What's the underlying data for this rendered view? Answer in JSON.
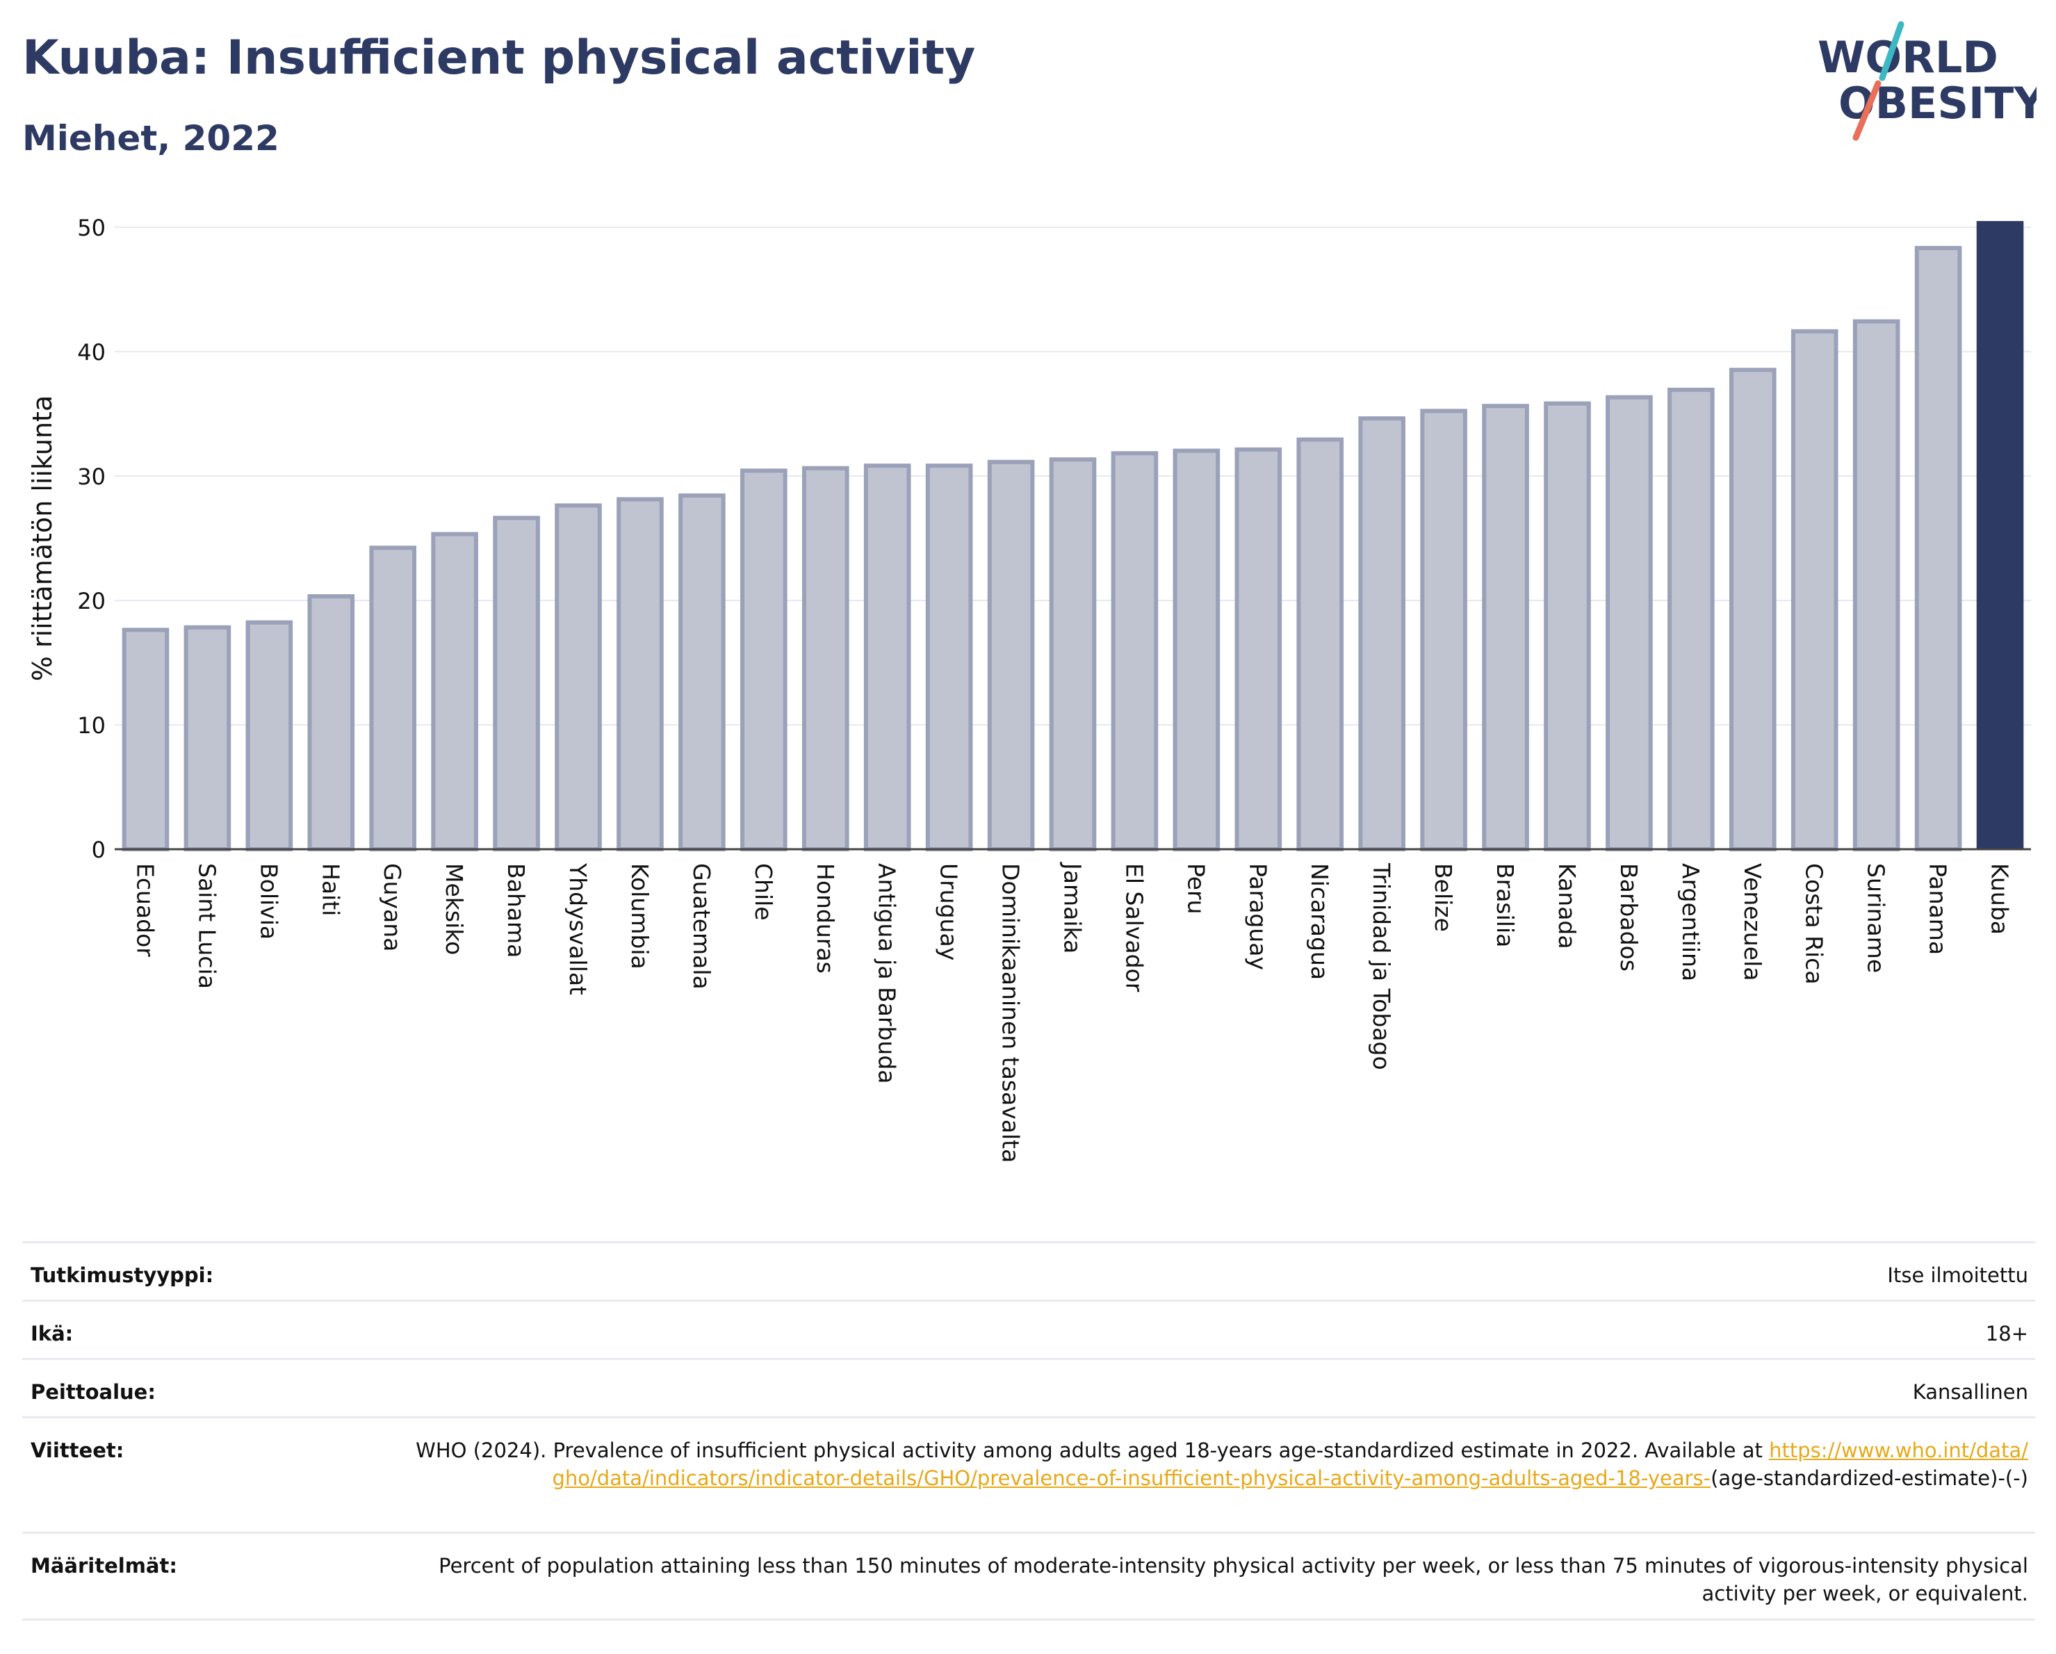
{
  "header": {
    "title": "Kuuba: Insufficient physical activity",
    "subtitle": "Miehet, 2022"
  },
  "logo": {
    "line1": "WORLD",
    "line2": "OBESITY",
    "colors": {
      "text": "#2d3a63",
      "slash_teal": "#3bb8c2",
      "slash_coral": "#e8705a"
    }
  },
  "chart_data": {
    "type": "bar",
    "title": "Kuuba: Insufficient physical activity",
    "subtitle": "Miehet, 2022",
    "xlabel": "",
    "ylabel": "% riittämätön liikunta",
    "ylim": [
      0,
      50
    ],
    "yticks": [
      0,
      10,
      20,
      30,
      40,
      50
    ],
    "grid": true,
    "categories": [
      "Ecuador",
      "Saint Lucia",
      "Bolivia",
      "Haiti",
      "Guyana",
      "Meksiko",
      "Bahama",
      "Yhdysvallat",
      "Kolumbia",
      "Guatemala",
      "Chile",
      "Honduras",
      "Antigua ja Barbuda",
      "Uruguay",
      "Dominikaaninen tasavalta",
      "Jamaika",
      "El Salvador",
      "Peru",
      "Paraguay",
      "Nicaragua",
      "Trinidad ja Tobago",
      "Belize",
      "Brasilia",
      "Kanada",
      "Barbados",
      "Argentiina",
      "Venezuela",
      "Costa Rica",
      "Suriname",
      "Panama",
      "Kuuba"
    ],
    "values": [
      17.8,
      18.0,
      18.4,
      20.5,
      24.4,
      25.5,
      26.8,
      27.8,
      28.3,
      28.6,
      30.6,
      30.8,
      31.0,
      31.0,
      31.3,
      31.5,
      32.0,
      32.2,
      32.3,
      33.1,
      34.8,
      35.4,
      35.8,
      36.0,
      36.5,
      37.1,
      38.7,
      41.8,
      42.6,
      48.5,
      50.5
    ],
    "highlight": "Kuuba",
    "colors": {
      "bar": "#c0c4d1",
      "bar_border": "#9aa1b8",
      "highlight": "#2d3a63",
      "grid": "#e6e9f1"
    }
  },
  "meta": [
    {
      "label": "Tutkimustyyppi:",
      "value": "Itse ilmoitettu"
    },
    {
      "label": "Ikä:",
      "value": "18+"
    },
    {
      "label": "Peittoalue:",
      "value": "Kansallinen"
    },
    {
      "label": "Viitteet:",
      "value": "WHO (2024). Prevalence of insufficient physical activity among adults aged 18-years age-standardized estimate in 2022. Available at",
      "link": "https://www.who.int/data/gho/data/indicators/indicator-details/GHO/prevalence-of-insufficient-physical-activity-among-adults-aged-18-years-",
      "suffix": "(age-standardized-estimate)-(-)"
    },
    {
      "label": "Määritelmät:",
      "value": "Percent of population attaining less than 150 minutes of moderate-intensity physical activity per week, or less than 75 minutes of vigorous-intensity physical activity per week, or equivalent."
    }
  ]
}
